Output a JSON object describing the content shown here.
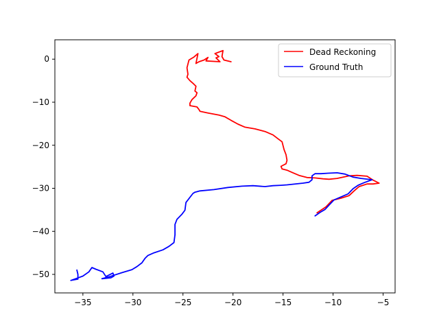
{
  "chart_data": {
    "type": "line",
    "title": "",
    "xlabel": "",
    "ylabel": "",
    "xlim": [
      -37.8,
      -3.8
    ],
    "ylim": [
      -54.3,
      4.5
    ],
    "xticks": [
      -35,
      -30,
      -25,
      -20,
      -15,
      -10,
      -5
    ],
    "yticks": [
      0,
      -10,
      -20,
      -30,
      -40,
      -50
    ],
    "grid": false,
    "legend_position": "top-right",
    "series": [
      {
        "name": "Dead Reckoning",
        "color": "#ff0000",
        "points": [
          [
            -20.2,
            -0.6
          ],
          [
            -20.9,
            -0.2
          ],
          [
            -21.1,
            0.6
          ],
          [
            -21.0,
            2.0
          ],
          [
            -21.8,
            1.3
          ],
          [
            -21.4,
            0.6
          ],
          [
            -21.7,
            0.3
          ],
          [
            -21.3,
            -0.6
          ],
          [
            -22.7,
            -0.4
          ],
          [
            -22.5,
            0.4
          ],
          [
            -22.9,
            -0.2
          ],
          [
            -23.4,
            -0.6
          ],
          [
            -23.7,
            -1.0
          ],
          [
            -23.5,
            1.3
          ],
          [
            -23.9,
            0.5
          ],
          [
            -24.4,
            -0.2
          ],
          [
            -24.6,
            -2.0
          ],
          [
            -24.5,
            -3.5
          ],
          [
            -24.6,
            -4.2
          ],
          [
            -24.3,
            -5.0
          ],
          [
            -24.0,
            -5.6
          ],
          [
            -23.7,
            -6.3
          ],
          [
            -23.8,
            -7.4
          ],
          [
            -23.6,
            -7.8
          ],
          [
            -23.7,
            -8.5
          ],
          [
            -24.1,
            -9.4
          ],
          [
            -24.3,
            -10.2
          ],
          [
            -24.3,
            -10.8
          ],
          [
            -23.6,
            -11.1
          ],
          [
            -23.4,
            -11.7
          ],
          [
            -23.3,
            -12.1
          ],
          [
            -22.5,
            -12.5
          ],
          [
            -21.4,
            -13.0
          ],
          [
            -20.8,
            -13.4
          ],
          [
            -20.2,
            -14.2
          ],
          [
            -19.5,
            -15.1
          ],
          [
            -18.8,
            -15.8
          ],
          [
            -17.8,
            -16.2
          ],
          [
            -16.8,
            -16.8
          ],
          [
            -16.0,
            -17.6
          ],
          [
            -15.5,
            -18.5
          ],
          [
            -15.1,
            -19.2
          ],
          [
            -14.9,
            -21.0
          ],
          [
            -14.7,
            -22.2
          ],
          [
            -14.6,
            -23.5
          ],
          [
            -14.7,
            -24.3
          ],
          [
            -15.2,
            -24.9
          ],
          [
            -15.1,
            -25.5
          ],
          [
            -14.6,
            -25.8
          ],
          [
            -14.1,
            -26.3
          ],
          [
            -13.4,
            -27.0
          ],
          [
            -12.6,
            -27.5
          ],
          [
            -11.8,
            -27.6
          ],
          [
            -11.0,
            -27.8
          ],
          [
            -10.4,
            -27.9
          ],
          [
            -9.6,
            -27.7
          ],
          [
            -9.0,
            -27.4
          ],
          [
            -8.4,
            -27.1
          ],
          [
            -7.6,
            -27.0
          ],
          [
            -6.6,
            -27.2
          ],
          [
            -6.0,
            -28.1
          ],
          [
            -5.4,
            -28.8
          ],
          [
            -6.0,
            -29.0
          ],
          [
            -6.6,
            -29.0
          ],
          [
            -7.4,
            -29.6
          ],
          [
            -7.9,
            -30.6
          ],
          [
            -8.4,
            -31.7
          ],
          [
            -9.2,
            -32.3
          ],
          [
            -10.1,
            -32.8
          ],
          [
            -10.7,
            -34.3
          ],
          [
            -11.6,
            -35.7
          ]
        ]
      },
      {
        "name": "Ground Truth",
        "color": "#0000ff",
        "points": [
          [
            -11.8,
            -36.4
          ],
          [
            -11.3,
            -35.6
          ],
          [
            -10.8,
            -34.9
          ],
          [
            -10.4,
            -33.9
          ],
          [
            -9.9,
            -32.7
          ],
          [
            -9.2,
            -32.0
          ],
          [
            -8.5,
            -31.3
          ],
          [
            -8.0,
            -30.1
          ],
          [
            -7.5,
            -29.3
          ],
          [
            -6.9,
            -28.7
          ],
          [
            -6.1,
            -28.0
          ],
          [
            -7.2,
            -27.7
          ],
          [
            -8.0,
            -27.4
          ],
          [
            -8.8,
            -26.7
          ],
          [
            -9.6,
            -26.4
          ],
          [
            -10.5,
            -26.5
          ],
          [
            -11.2,
            -26.6
          ],
          [
            -11.8,
            -26.6
          ],
          [
            -12.1,
            -27.1
          ],
          [
            -12.1,
            -28.0
          ],
          [
            -12.4,
            -28.6
          ],
          [
            -13.0,
            -28.8
          ],
          [
            -14.6,
            -29.2
          ],
          [
            -15.2,
            -29.3
          ],
          [
            -16.0,
            -29.4
          ],
          [
            -16.8,
            -29.6
          ],
          [
            -18.0,
            -29.4
          ],
          [
            -19.1,
            -29.5
          ],
          [
            -20.5,
            -29.8
          ],
          [
            -21.9,
            -30.3
          ],
          [
            -23.3,
            -30.6
          ],
          [
            -23.8,
            -30.9
          ],
          [
            -24.0,
            -31.2
          ],
          [
            -24.5,
            -32.7
          ],
          [
            -24.7,
            -33.3
          ],
          [
            -24.8,
            -35.1
          ],
          [
            -25.1,
            -36.0
          ],
          [
            -25.6,
            -37.2
          ],
          [
            -25.8,
            -38.4
          ],
          [
            -25.8,
            -40.8
          ],
          [
            -25.9,
            -42.6
          ],
          [
            -26.4,
            -43.5
          ],
          [
            -27.0,
            -44.3
          ],
          [
            -27.9,
            -45.0
          ],
          [
            -28.5,
            -45.6
          ],
          [
            -28.8,
            -46.3
          ],
          [
            -29.1,
            -47.3
          ],
          [
            -29.6,
            -48.2
          ],
          [
            -30.1,
            -48.9
          ],
          [
            -31.1,
            -49.6
          ],
          [
            -32.3,
            -50.5
          ],
          [
            -33.1,
            -51.0
          ],
          [
            -32.2,
            -50.8
          ],
          [
            -31.9,
            -50.4
          ],
          [
            -32.0,
            -49.7
          ],
          [
            -32.7,
            -50.5
          ],
          [
            -33.0,
            -49.4
          ],
          [
            -33.7,
            -48.8
          ],
          [
            -34.1,
            -48.4
          ],
          [
            -34.4,
            -49.4
          ],
          [
            -35.0,
            -50.4
          ],
          [
            -35.6,
            -50.9
          ],
          [
            -36.2,
            -51.4
          ],
          [
            -35.5,
            -51.1
          ],
          [
            -35.5,
            -50.0
          ],
          [
            -35.6,
            -49.0
          ]
        ]
      }
    ]
  }
}
